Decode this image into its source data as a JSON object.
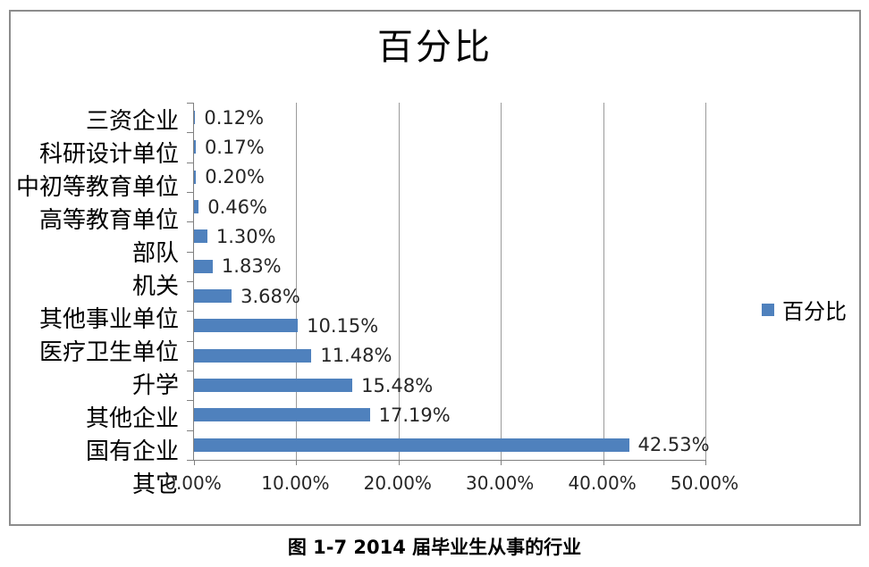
{
  "caption": "图 1-7 2014 届毕业生从事的行业",
  "chart_data": {
    "type": "bar",
    "orientation": "horizontal",
    "title": "百分比",
    "legend": "百分比",
    "legend_position": "right",
    "categories": [
      "三资企业",
      "科研设计单位",
      "中初等教育单位",
      "高等教育单位",
      "部队",
      "机关",
      "其他事业单位",
      "医疗卫生单位",
      "升学",
      "其他企业",
      "国有企业",
      "其它"
    ],
    "values": [
      0.12,
      0.17,
      0.2,
      0.46,
      1.3,
      1.83,
      3.68,
      10.15,
      11.48,
      15.48,
      17.19,
      42.53
    ],
    "value_labels": [
      "0.12%",
      "0.17%",
      "0.20%",
      "0.46%",
      "1.30%",
      "1.83%",
      "3.68%",
      "10.15%",
      "11.48%",
      "15.48%",
      "17.19%",
      "42.53%"
    ],
    "xlim": [
      0,
      50
    ],
    "xtick_values": [
      0,
      10,
      20,
      30,
      40,
      50
    ],
    "xtick_labels": [
      "0.00%",
      "10.00%",
      "20.00%",
      "30.00%",
      "40.00%",
      "50.00%"
    ],
    "grid": true,
    "colors": {
      "bar": "#4f81bd",
      "grid": "#9b9b9b",
      "axis": "#808080",
      "frame_border": "#8c8c8c"
    }
  }
}
